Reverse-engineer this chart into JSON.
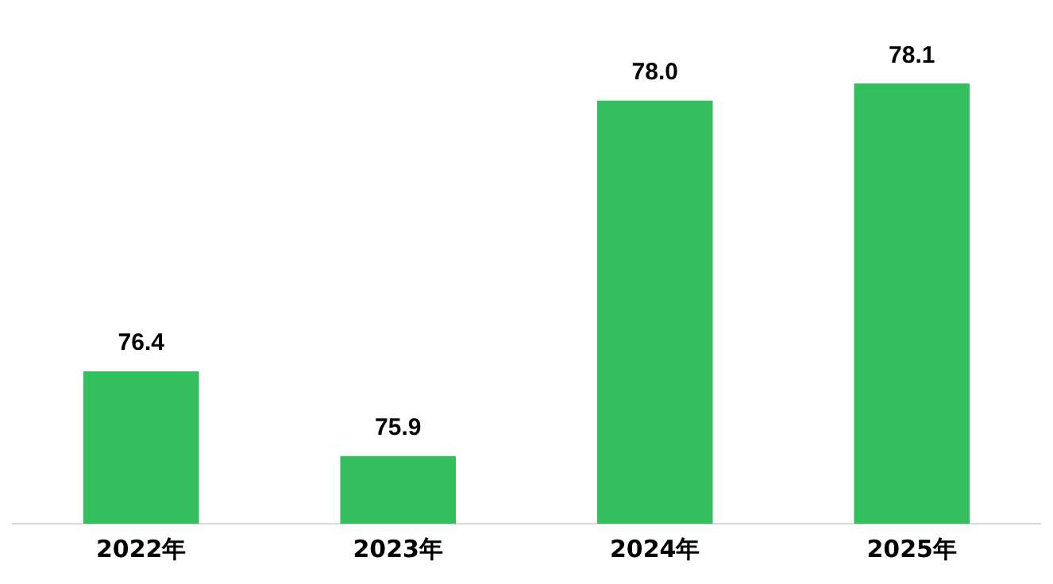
{
  "chart_data": {
    "type": "bar",
    "categories": [
      "2022年",
      "2023年",
      "2024年",
      "2025年"
    ],
    "values": [
      76.4,
      75.9,
      78.0,
      78.1
    ],
    "value_labels": [
      "76.4",
      "75.9",
      "78.0",
      "78.1"
    ],
    "color": "#34bf5e",
    "grid": false,
    "legend": false
  }
}
